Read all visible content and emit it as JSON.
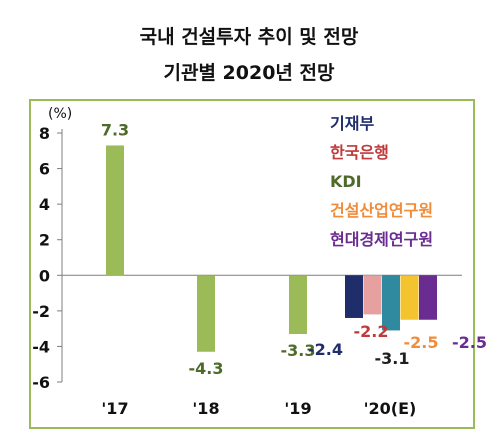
{
  "chart_data": {
    "type": "bar",
    "title_line1": "국내 건설투자 추이 및 전망",
    "title_line2": "기관별 2020년 전망",
    "y_unit": "(%)",
    "ylim": [
      -6,
      8
    ],
    "yticks": [
      8,
      6,
      4,
      2,
      0,
      -2,
      -4,
      -6
    ],
    "grid": false,
    "legend_position": "top-right",
    "historical": [
      {
        "category": "'17",
        "value": 7.3,
        "label": "7.3"
      },
      {
        "category": "'18",
        "value": -4.3,
        "label": "-4.3"
      },
      {
        "category": "'19",
        "value": -3.3,
        "label": "-3.3"
      }
    ],
    "forecast_category": "'20(E)",
    "series": [
      {
        "name": "기재부",
        "value": -2.4,
        "label": "-2.4",
        "color": "#1f2d6b"
      },
      {
        "name": "한국은행",
        "value": -2.2,
        "label": "-2.2",
        "color": "#e6a0a0"
      },
      {
        "name": "KDI",
        "value": -3.1,
        "label": "-3.1",
        "color": "#2f8aa0"
      },
      {
        "name": "건설산업연구원",
        "value": -2.5,
        "label": "-2.5",
        "color": "#f4c430"
      },
      {
        "name": "현대경제연구원",
        "value": -2.5,
        "label": "-2.5",
        "color": "#6a2c91"
      }
    ],
    "colors": {
      "historical_bar": "#9bbb59",
      "historical_label": "#4e6b2a",
      "legend": [
        "#1f2d6b",
        "#c0393b",
        "#4e6b2a",
        "#f08c3a",
        "#6a2c91"
      ],
      "data_label": [
        "#1f2d6b",
        "#c0393b",
        "#1f1f1f",
        "#f08c3a",
        "#6a2c91"
      ],
      "frame": "#9bbb59"
    }
  }
}
